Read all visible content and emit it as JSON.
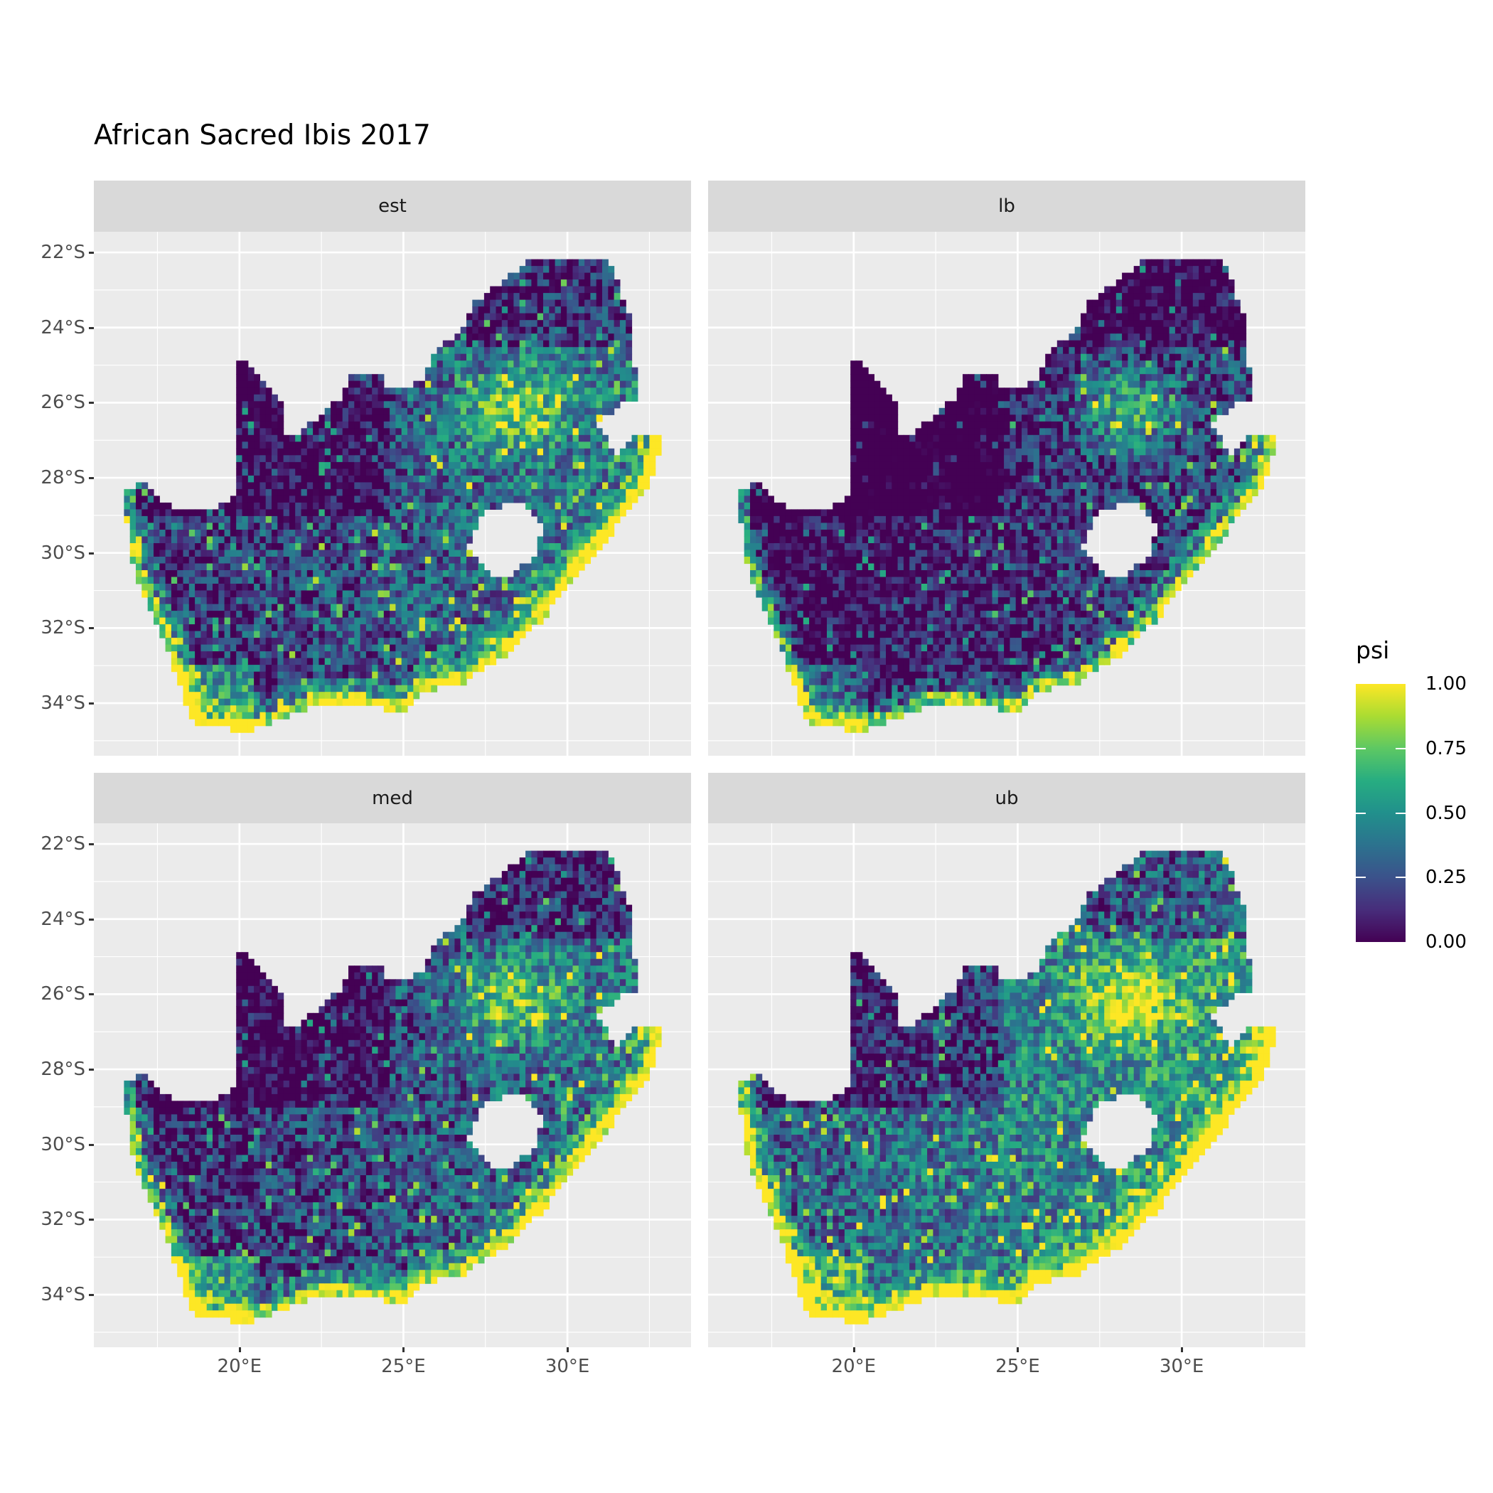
{
  "chart_data": {
    "type": "heatmap",
    "title": "African Sacred Ibis 2017",
    "facets": [
      "est",
      "lb",
      "med",
      "ub"
    ],
    "facet_layout": "2x2",
    "x_axis": {
      "ticks": [
        20,
        25,
        30
      ],
      "tick_labels": [
        "20°E",
        "25°E",
        "30°E"
      ],
      "xlim": [
        15.56,
        33.77
      ]
    },
    "y_axis": {
      "ticks": [
        -22,
        -24,
        -26,
        -28,
        -30,
        -32,
        -34
      ],
      "tick_labels": [
        "22°S",
        "24°S",
        "26°S",
        "28°S",
        "30°S",
        "32°S",
        "34°S"
      ],
      "ylim": [
        -35.4,
        -21.45
      ]
    },
    "grid": true,
    "legend": {
      "title": "psi",
      "placement": "right",
      "colorscale": "viridis",
      "range": [
        0,
        1
      ],
      "ticks": [
        1.0,
        0.75,
        0.5,
        0.25,
        0.0
      ],
      "tick_labels": [
        "1.00",
        "0.75",
        "0.50",
        "0.25",
        "0.00"
      ],
      "colors": [
        "#440154",
        "#472D7B",
        "#3B528B",
        "#2C728E",
        "#21908C",
        "#27AD81",
        "#5DC863",
        "#AADC32",
        "#FDE725"
      ]
    },
    "region": "South Africa"
  }
}
